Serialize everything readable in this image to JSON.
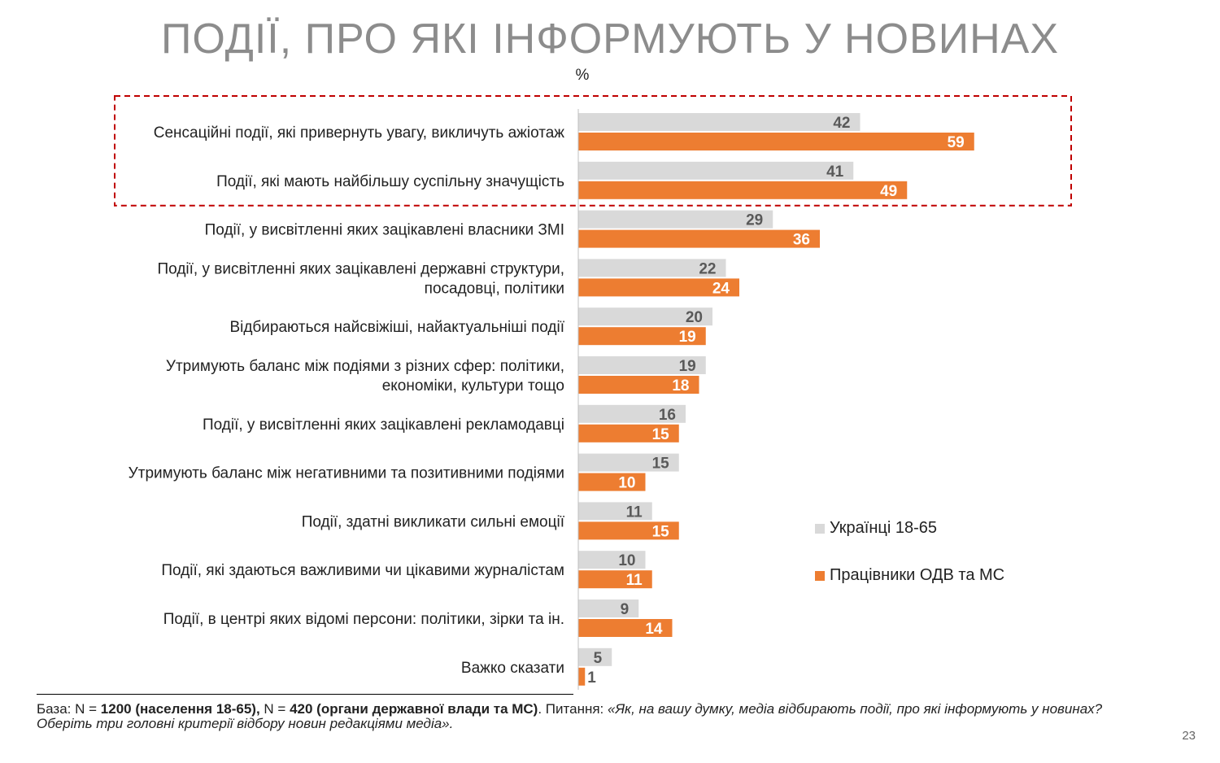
{
  "title": "ПОДІЇ, ПРО ЯКІ ІНФОРМУЮТЬ У НОВИНАХ",
  "unit": "%",
  "chart_data": {
    "type": "bar",
    "orientation": "horizontal",
    "title": "ПОДІЇ, ПРО ЯКІ ІНФОРМУЮТЬ У НОВИНАХ",
    "categories": [
      "Сенсаційні події, які привернуть увагу, викличуть ажіотаж",
      "Події, які мають найбільшу суспільну значущість",
      "Події, у висвітленні яких зацікавлені  власники ЗМІ",
      "Події, у висвітленні яких зацікавлені державні структури,\nпосадовці, політики",
      "Відбираються найсвіжіші, найактуальніші події",
      "Утримують баланс між подіями з різних сфер: політики,\nекономіки, культури тощо",
      "Події, у висвітленні яких зацікавлені рекламодавці",
      "Утримують баланс між негативними та позитивними подіями",
      "Події, здатні викликати сильні емоції",
      "Події, які здаються важливими чи цікавими журналістам",
      "Події, в центрі яких відомі персони: політики, зірки та ін.",
      "Важко сказати"
    ],
    "series": [
      {
        "name": "Українці 18-65",
        "color": "#d9d9d9",
        "label_color": "#595959",
        "values": [
          42,
          41,
          29,
          22,
          20,
          19,
          16,
          15,
          11,
          10,
          9,
          5
        ]
      },
      {
        "name": "Працівники ОДВ та МС",
        "color": "#ed7d31",
        "label_color": "#ffffff",
        "values": [
          59,
          49,
          36,
          24,
          19,
          18,
          15,
          10,
          15,
          11,
          14,
          1
        ]
      }
    ],
    "highlight": {
      "categories": [
        0,
        1
      ],
      "style": "dashed",
      "color": "#c00000"
    },
    "legend": "right",
    "grid": false
  },
  "footnote": {
    "p1": "База: N = ",
    "b1": "1200 (населення 18-65),",
    "p2": " N = ",
    "b2": "420 (органи державної влади та МС)",
    "p3": ". Питання: ",
    "question": "«Як, на вашу думку, медіа відбирають події, про які інформують у новинах? Оберіть три головні критерії відбору новин редакціями медіа»."
  },
  "page_number": "23"
}
